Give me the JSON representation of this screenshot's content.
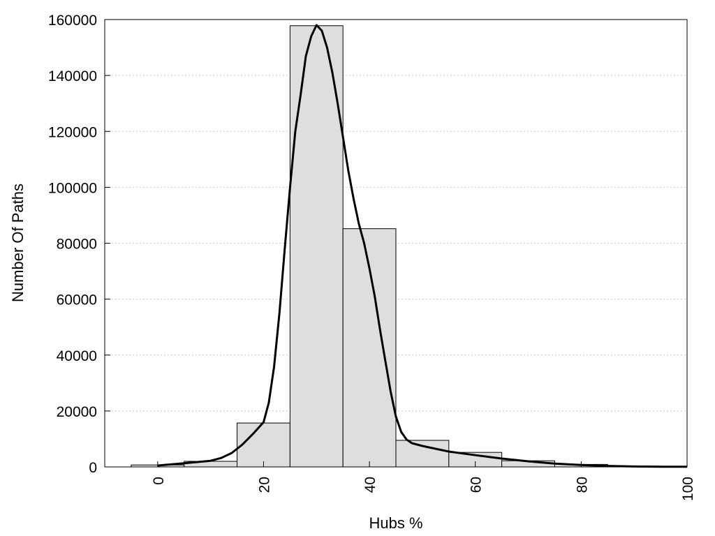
{
  "chart_data": {
    "type": "bar",
    "xlabel": "Hubs %",
    "ylabel": "Number Of Paths",
    "xlim": [
      -10,
      100
    ],
    "ylim": [
      0,
      160000
    ],
    "x_ticks": [
      0,
      20,
      40,
      60,
      80,
      100
    ],
    "y_ticks": [
      0,
      20000,
      40000,
      60000,
      80000,
      100000,
      120000,
      140000,
      160000
    ],
    "grid": "horizontal dotted",
    "legend": "none",
    "bar_width": 10,
    "bars": [
      {
        "x": 0,
        "value": 700
      },
      {
        "x": 10,
        "value": 2000
      },
      {
        "x": 20,
        "value": 15700
      },
      {
        "x": 30,
        "value": 157800
      },
      {
        "x": 40,
        "value": 85200
      },
      {
        "x": 50,
        "value": 9500
      },
      {
        "x": 60,
        "value": 5200
      },
      {
        "x": 70,
        "value": 2200
      },
      {
        "x": 80,
        "value": 900
      },
      {
        "x": 90,
        "value": 300
      },
      {
        "x": 100,
        "value": 100
      }
    ],
    "curve": [
      [
        0,
        500
      ],
      [
        5,
        1300
      ],
      [
        10,
        2200
      ],
      [
        12,
        3200
      ],
      [
        14,
        5000
      ],
      [
        16,
        8000
      ],
      [
        18,
        11800
      ],
      [
        20,
        16000
      ],
      [
        21,
        23000
      ],
      [
        22,
        36000
      ],
      [
        23,
        55000
      ],
      [
        24,
        78000
      ],
      [
        25,
        100000
      ],
      [
        26,
        120000
      ],
      [
        27,
        133000
      ],
      [
        28,
        147000
      ],
      [
        29,
        154000
      ],
      [
        30,
        158000
      ],
      [
        31,
        156000
      ],
      [
        32,
        150000
      ],
      [
        33,
        141000
      ],
      [
        34,
        130000
      ],
      [
        35,
        118000
      ],
      [
        36,
        106000
      ],
      [
        37,
        96000
      ],
      [
        38,
        87000
      ],
      [
        39,
        80000
      ],
      [
        40,
        71000
      ],
      [
        41,
        61000
      ],
      [
        42,
        49000
      ],
      [
        43,
        38000
      ],
      [
        44,
        27000
      ],
      [
        45,
        18000
      ],
      [
        46,
        12500
      ],
      [
        47,
        9800
      ],
      [
        48,
        8500
      ],
      [
        50,
        7500
      ],
      [
        55,
        5500
      ],
      [
        60,
        4200
      ],
      [
        65,
        3000
      ],
      [
        70,
        2000
      ],
      [
        75,
        1200
      ],
      [
        80,
        700
      ],
      [
        85,
        350
      ],
      [
        90,
        150
      ],
      [
        95,
        80
      ],
      [
        100,
        50
      ]
    ]
  },
  "style": {
    "bar_fill": "#dedede",
    "bar_stroke": "#000000",
    "curve_color": "#000000",
    "grid_color": "#c8c8c8"
  }
}
